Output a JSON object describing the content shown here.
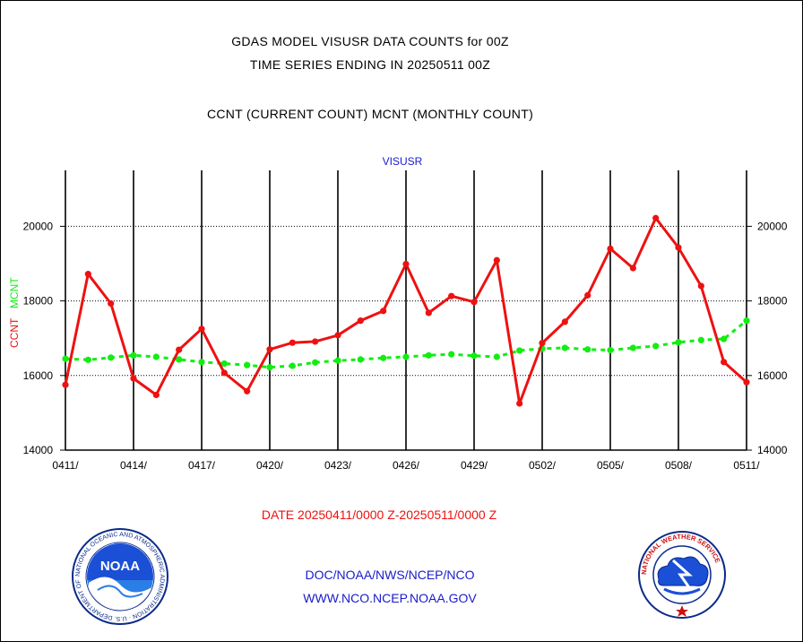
{
  "header": {
    "title_line1": "GDAS MODEL VISUSR DATA COUNTS for 00Z",
    "title_line2": "TIME SERIES ENDING IN 20250511 00Z",
    "title_line3": "CCNT (CURRENT COUNT) MCNT (MONTHLY COUNT)"
  },
  "footer": {
    "date_range": "DATE 20250411/0000 Z-20250511/0000 Z",
    "org_path": "DOC/NOAA/NWS/NCEP/NCO",
    "website": "WWW.NCO.NCEP.NOAA.GOV"
  },
  "logos": {
    "noaa_word": "NOAA",
    "noaa_ring": "NATIONAL OCEANIC AND ATMOSPHERIC ADMINISTRATION · U.S. DEPARTMENT OF COMMERCE",
    "nws_ring": "NATIONAL WEATHER SERVICE"
  },
  "colors": {
    "ccnt": "#ee1111",
    "mcnt": "#11ee11",
    "plot_title": "#1a1acc",
    "date_text": "#ee1111"
  },
  "chart_data": {
    "type": "line",
    "title": "VISUSR",
    "ylabel_series1": "CCNT",
    "ylabel_series2": "MCNT",
    "ylim": [
      14000,
      21500
    ],
    "yticks": [
      14000,
      16000,
      18000,
      20000
    ],
    "ytick_labels": [
      "14000",
      "16000",
      "18000",
      "20000"
    ],
    "xtick_labels": [
      "0411/",
      "0414/",
      "0417/",
      "0420/",
      "0423/",
      "0426/",
      "0429/",
      "0502/",
      "0505/",
      "0508/",
      "0511/"
    ],
    "grid": true,
    "x": [
      "0411",
      "0412",
      "0413",
      "0414",
      "0415",
      "0416",
      "0417",
      "0418",
      "0419",
      "0420",
      "0421",
      "0422",
      "0423",
      "0424",
      "0425",
      "0426",
      "0427",
      "0428",
      "0429",
      "0430",
      "0501",
      "0502",
      "0503",
      "0504",
      "0505",
      "0506",
      "0507",
      "0508",
      "0509",
      "0510",
      "0511"
    ],
    "series": [
      {
        "name": "CCNT",
        "color": "#ee1111",
        "style": "solid",
        "values": [
          15750,
          18720,
          17930,
          15920,
          15480,
          16690,
          17250,
          16070,
          15580,
          16700,
          16880,
          16910,
          17080,
          17470,
          17730,
          18990,
          17680,
          18130,
          17970,
          19090,
          15250,
          16870,
          17440,
          18150,
          19400,
          18880,
          20220,
          19430,
          18400,
          16360,
          15820
        ]
      },
      {
        "name": "MCNT",
        "color": "#11ee11",
        "style": "dashed",
        "values": [
          16450,
          16420,
          16480,
          16540,
          16500,
          16430,
          16360,
          16320,
          16280,
          16220,
          16260,
          16350,
          16400,
          16430,
          16470,
          16500,
          16540,
          16570,
          16530,
          16500,
          16670,
          16720,
          16740,
          16700,
          16680,
          16740,
          16790,
          16890,
          16950,
          16980,
          17470
        ]
      }
    ]
  }
}
